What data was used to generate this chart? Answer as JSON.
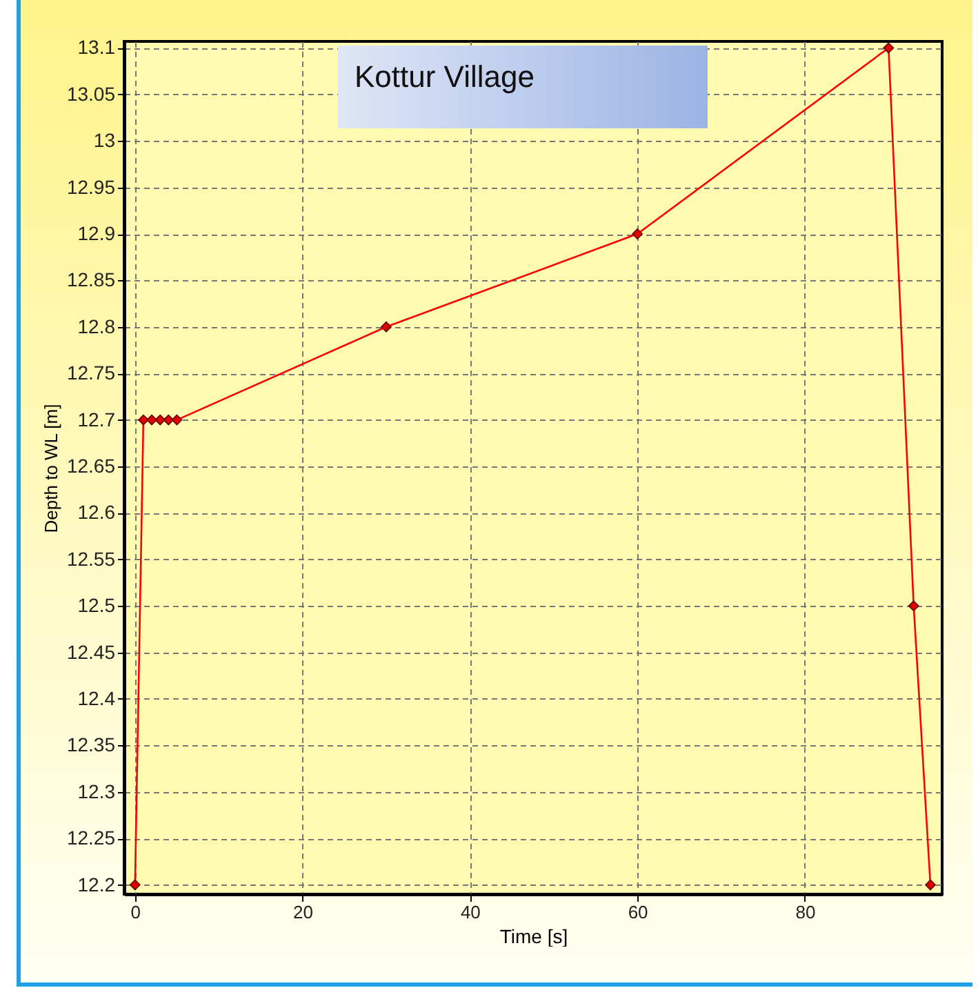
{
  "chart_data": {
    "type": "line",
    "title": "Kottur Village",
    "xlabel": "Time [s]",
    "ylabel": "Depth to WL [m]",
    "x": [
      0,
      1,
      2,
      3,
      4,
      5,
      30,
      60,
      90,
      93,
      95
    ],
    "series": [
      {
        "color": "#ff0000",
        "values": [
          12.2,
          12.7,
          12.7,
          12.7,
          12.7,
          12.7,
          12.8,
          12.9,
          13.1,
          12.5,
          12.2
        ]
      }
    ],
    "xlim": [
      -1.3,
      96.4
    ],
    "xticks": [
      0,
      20,
      40,
      60,
      80
    ],
    "ylim": [
      12.19,
      13.107
    ],
    "yticks": [
      12.2,
      12.25,
      12.3,
      12.35,
      12.4,
      12.45,
      12.5,
      12.55,
      12.6,
      12.65,
      12.7,
      12.75,
      12.8,
      12.85,
      12.9,
      12.95,
      13,
      13.05,
      13.1
    ],
    "grid": true,
    "marker": "diamond",
    "line_style": "solid"
  }
}
